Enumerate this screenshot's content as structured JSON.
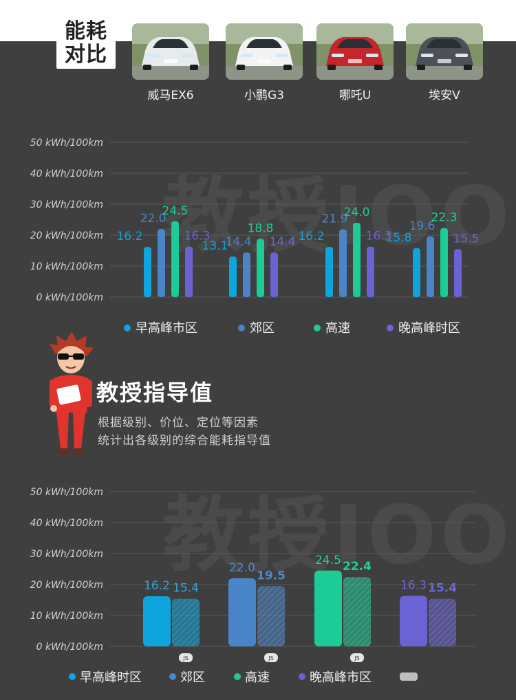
{
  "header": {
    "title_line1": "能耗",
    "title_line2": "对比"
  },
  "cars": [
    {
      "name": "威马EX6",
      "paint": "#e8ebed"
    },
    {
      "name": "小鹏G3",
      "paint": "#f3f3f3"
    },
    {
      "name": "哪吒U",
      "paint": "#c5262b"
    },
    {
      "name": "埃安V",
      "paint": "#4d5057"
    }
  ],
  "watermark": "教授IOO",
  "guide": {
    "title": "教授指导值",
    "line1": "根据级别、价位、定位等因素",
    "line2": "统计出各级别的综合能耗指导值"
  },
  "colors": {
    "early_peak": "#0ea5dc",
    "suburb": "#4a84c9",
    "highway": "#1dcb96",
    "late_peak": "#6b63d4",
    "background": "#3f3f3f"
  },
  "chart_data": [
    {
      "type": "bar",
      "categories": [
        "威马EX6",
        "小鹏G3",
        "哪吒U",
        "埃安V"
      ],
      "series": [
        {
          "name": "早高峰市区",
          "color": "#0ea5dc",
          "values": [
            16.2,
            13.1,
            16.2,
            15.8
          ]
        },
        {
          "name": "郊区",
          "color": "#4a84c9",
          "values": [
            22.0,
            14.4,
            21.9,
            19.6
          ]
        },
        {
          "name": "高速",
          "color": "#1dcb96",
          "values": [
            24.5,
            18.8,
            24.0,
            22.3
          ]
        },
        {
          "name": "晚高峰时区",
          "color": "#6b63d4",
          "values": [
            16.3,
            14.4,
            16.3,
            15.5
          ]
        }
      ],
      "yticks": [
        "0 kWh/100km",
        "10 kWh/100km",
        "20 kWh/100km",
        "30 kWh/100km",
        "40 kWh/100km",
        "50 kWh/100km"
      ],
      "ylim": [
        0,
        50
      ],
      "grid": true,
      "legend": "bottom"
    },
    {
      "type": "bar",
      "categories": [
        "早高峰时区",
        "郊区",
        "高速",
        "晚高峰市区"
      ],
      "series": [
        {
          "name": "",
          "values": [
            16.2,
            22.0,
            24.5,
            16.3
          ]
        },
        {
          "name": "",
          "values": [
            15.4,
            19.5,
            22.4,
            15.4
          ]
        }
      ],
      "category_colors": [
        "#0ea5dc",
        "#4a84c9",
        "#1dcb96",
        "#6b63d4"
      ],
      "value_label_colors": [
        "#29a6e0",
        "#4f88cd",
        "#22cf99",
        "#6d66d8"
      ],
      "badge": "JS",
      "yticks": [
        "0 kWh/100km",
        "10 kWh/100km",
        "20 kWh/100km",
        "30 kWh/100km",
        "40 kWh/100km",
        "50 kWh/100km"
      ],
      "ylim": [
        0,
        50
      ],
      "grid": true,
      "legend": "bottom"
    }
  ]
}
